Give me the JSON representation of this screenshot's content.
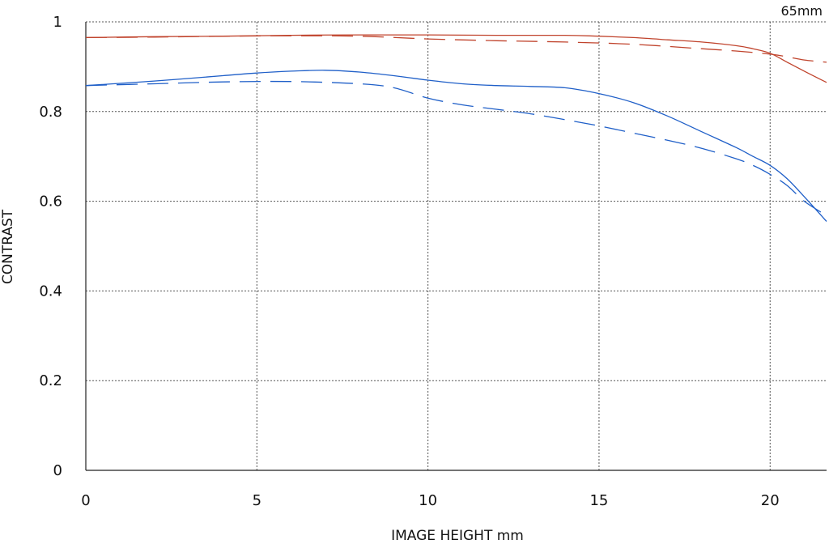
{
  "chart_data": {
    "type": "line",
    "title": "65mm",
    "xlabel": "IMAGE HEIGHT  mm",
    "ylabel": "CONTRAST",
    "xlim": [
      0,
      21.65
    ],
    "ylim": [
      0,
      1
    ],
    "xticks": [
      0,
      5,
      10,
      15,
      20
    ],
    "yticks": [
      0,
      0.2,
      0.4,
      0.6,
      0.8,
      1
    ],
    "xtick_labels": [
      "0",
      "5",
      "10",
      "15",
      "20"
    ],
    "ytick_labels": [
      "0",
      "0.2",
      "0.4",
      "0.6",
      "0.8",
      "1"
    ],
    "grid": true,
    "series": [
      {
        "color": "#c0432c",
        "dash": "solid",
        "x": [
          0,
          2,
          4,
          6,
          8,
          10,
          12,
          14,
          15,
          16,
          17,
          18,
          19,
          19.5,
          20,
          20.5,
          21,
          21.65
        ],
        "y": [
          0.965,
          0.967,
          0.968,
          0.97,
          0.971,
          0.971,
          0.97,
          0.97,
          0.968,
          0.965,
          0.96,
          0.955,
          0.947,
          0.94,
          0.93,
          0.91,
          0.89,
          0.865
        ]
      },
      {
        "color": "#c0432c",
        "dash": "dashed",
        "x": [
          0,
          2,
          4,
          6,
          8,
          10,
          12,
          14,
          16,
          18,
          19,
          20,
          20.5,
          21,
          21.65
        ],
        "y": [
          0.965,
          0.966,
          0.968,
          0.969,
          0.968,
          0.962,
          0.958,
          0.955,
          0.95,
          0.94,
          0.935,
          0.928,
          0.922,
          0.915,
          0.91
        ]
      },
      {
        "color": "#1f5fc8",
        "dash": "solid",
        "x": [
          0,
          2,
          4,
          5,
          6,
          7,
          8,
          9,
          10,
          11,
          12,
          13,
          14,
          15,
          16,
          17,
          18,
          19,
          19.5,
          20,
          20.5,
          21,
          21.65
        ],
        "y": [
          0.858,
          0.868,
          0.88,
          0.886,
          0.89,
          0.892,
          0.888,
          0.88,
          0.87,
          0.862,
          0.858,
          0.856,
          0.853,
          0.84,
          0.82,
          0.79,
          0.755,
          0.72,
          0.7,
          0.68,
          0.65,
          0.61,
          0.555
        ]
      },
      {
        "color": "#1f5fc8",
        "dash": "dashed",
        "x": [
          0,
          2,
          4,
          6,
          8,
          9,
          10,
          11,
          12,
          13,
          14,
          15,
          16,
          17,
          18,
          19,
          19.5,
          20,
          20.5,
          21,
          21.5
        ],
        "y": [
          0.858,
          0.862,
          0.866,
          0.867,
          0.862,
          0.853,
          0.83,
          0.815,
          0.805,
          0.795,
          0.782,
          0.768,
          0.752,
          0.736,
          0.718,
          0.695,
          0.68,
          0.66,
          0.635,
          0.6,
          0.575
        ]
      }
    ]
  }
}
